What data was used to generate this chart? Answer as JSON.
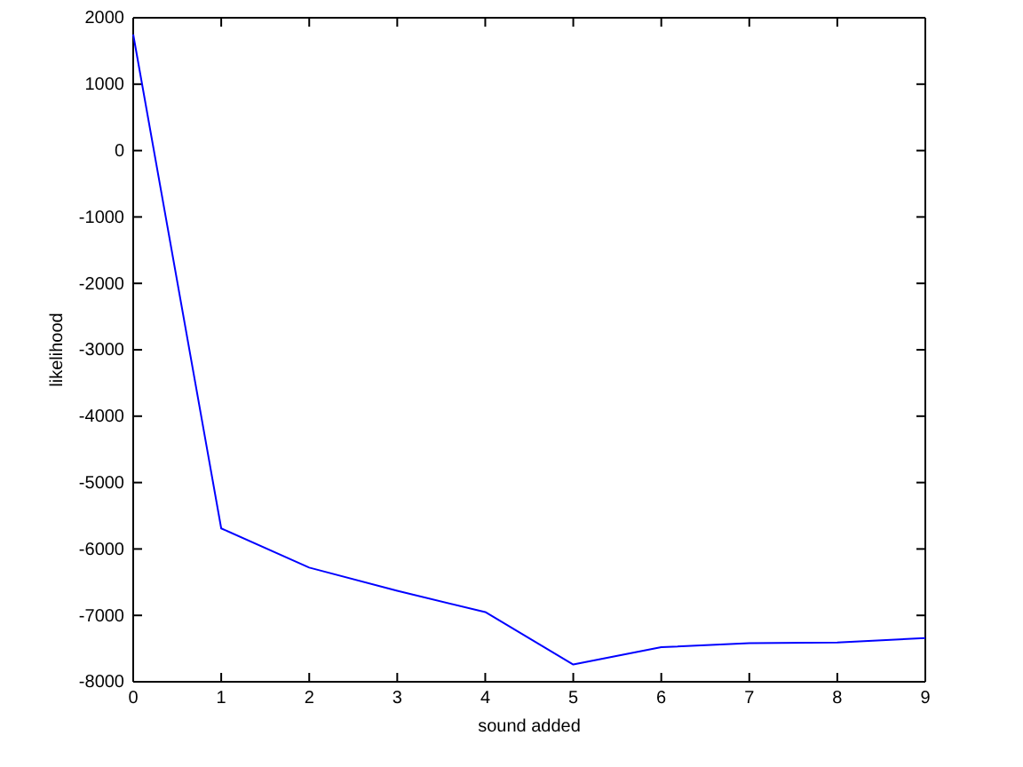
{
  "chart_data": {
    "type": "line",
    "xlabel": "sound added",
    "ylabel": "likelihood",
    "x": [
      0,
      1,
      2,
      3,
      4,
      5,
      6,
      7,
      8,
      9
    ],
    "series": [
      {
        "color": "#0000ff",
        "values": [
          1750,
          -5690,
          -6280,
          -6630,
          -6950,
          -7740,
          -7480,
          -7420,
          -7410,
          -7340
        ]
      }
    ],
    "xlim": [
      0,
      9
    ],
    "xticks": [
      0,
      1,
      2,
      3,
      4,
      5,
      6,
      7,
      8,
      9
    ],
    "ylim": [
      -8000,
      2000
    ],
    "yticks": [
      -8000,
      -7000,
      -6000,
      -5000,
      -4000,
      -3000,
      -2000,
      -1000,
      0,
      1000,
      2000
    ],
    "grid": false
  }
}
